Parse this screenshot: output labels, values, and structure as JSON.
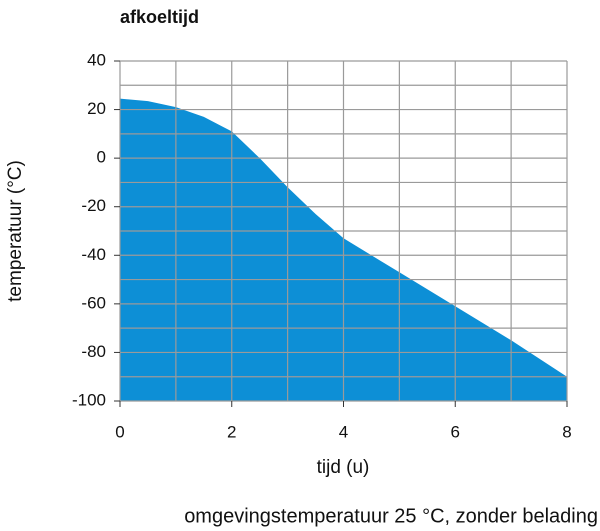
{
  "chart_data": {
    "type": "area",
    "title": "afkoeltijd",
    "x": [
      0,
      0.5,
      1,
      1.5,
      2,
      2.5,
      3,
      3.5,
      4,
      5,
      6,
      7,
      8
    ],
    "values": [
      24.5,
      23.5,
      21,
      17,
      11,
      0,
      -12,
      -23,
      -33,
      -47,
      -61,
      -75,
      -90
    ],
    "color": "#0d8fd6",
    "xlim": [
      0,
      8
    ],
    "xticks": [
      0,
      2,
      4,
      6,
      8
    ],
    "xgrid": [
      0,
      1,
      2,
      3,
      4,
      5,
      6,
      7,
      8
    ],
    "ylim": [
      -100,
      40
    ],
    "yticks": [
      -100,
      -80,
      -60,
      -40,
      -20,
      0,
      20,
      40
    ],
    "ygrid": [
      -100,
      -90,
      -80,
      -70,
      -60,
      -50,
      -40,
      -30,
      -20,
      -10,
      0,
      10,
      20,
      30,
      40
    ],
    "grid": true,
    "xlabel": "tijd (u)",
    "ylabel": "temperatuur (°C)",
    "note": "omgevingstemperatuur 25 °C, zonder belading"
  }
}
